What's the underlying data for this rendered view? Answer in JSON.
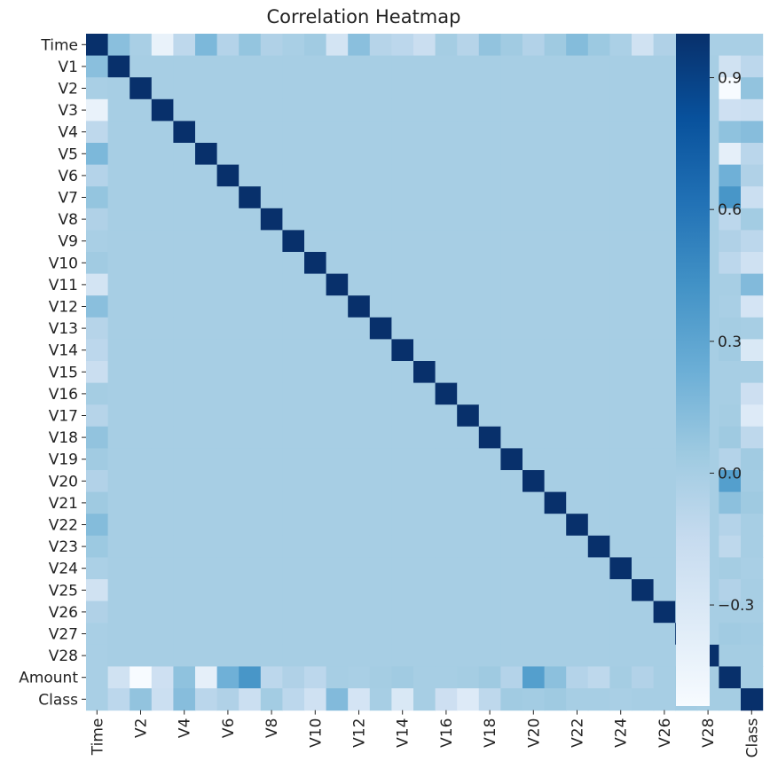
{
  "chart_data": {
    "type": "heatmap",
    "title": "Correlation Heatmap",
    "variables": [
      "Time",
      "V1",
      "V2",
      "V3",
      "V4",
      "V5",
      "V6",
      "V7",
      "V8",
      "V9",
      "V10",
      "V11",
      "V12",
      "V13",
      "V14",
      "V15",
      "V16",
      "V17",
      "V18",
      "V19",
      "V20",
      "V21",
      "V22",
      "V23",
      "V24",
      "V25",
      "V26",
      "V27",
      "V28",
      "Amount",
      "Class"
    ],
    "x_tick_labels": [
      "Time",
      "V2",
      "V4",
      "V6",
      "V8",
      "V10",
      "V12",
      "V14",
      "V16",
      "V18",
      "V20",
      "V22",
      "V24",
      "V26",
      "V28",
      "Class"
    ],
    "y_tick_labels": [
      "Time",
      "V1",
      "V2",
      "V3",
      "V4",
      "V5",
      "V6",
      "V7",
      "V8",
      "V9",
      "V10",
      "V11",
      "V12",
      "V13",
      "V14",
      "V15",
      "V16",
      "V17",
      "V18",
      "V19",
      "V20",
      "V21",
      "V22",
      "V23",
      "V24",
      "V25",
      "V26",
      "V27",
      "V28",
      "Amount",
      "Class"
    ],
    "time_correlations": [
      1.0,
      0.12,
      -0.01,
      -0.42,
      -0.11,
      0.17,
      -0.06,
      0.08,
      -0.04,
      -0.01,
      0.03,
      -0.25,
      0.12,
      -0.07,
      -0.1,
      -0.18,
      0.01,
      -0.07,
      0.09,
      0.03,
      -0.05,
      0.04,
      0.14,
      0.05,
      -0.02,
      -0.23,
      -0.04,
      -0.01,
      -0.01,
      -0.01,
      -0.01
    ],
    "amount_correlations": [
      -0.01,
      -0.23,
      -0.53,
      -0.21,
      0.1,
      -0.39,
      0.22,
      0.4,
      -0.1,
      -0.04,
      -0.1,
      0.0,
      -0.01,
      0.01,
      0.03,
      -0.0,
      -0.0,
      0.01,
      0.04,
      -0.06,
      0.34,
      0.11,
      -0.06,
      -0.11,
      0.01,
      -0.05,
      -0.0,
      0.03,
      0.01,
      1.0,
      0.01
    ],
    "class_correlations": [
      -0.01,
      -0.1,
      0.09,
      -0.19,
      0.13,
      -0.09,
      -0.04,
      -0.19,
      0.02,
      -0.1,
      -0.22,
      0.15,
      -0.26,
      -0.0,
      -0.3,
      -0.0,
      -0.2,
      -0.33,
      -0.11,
      0.03,
      0.02,
      0.04,
      0.0,
      -0.0,
      -0.01,
      0.0,
      0.0,
      0.02,
      0.01,
      0.01,
      1.0
    ],
    "colorbar": {
      "min": -0.53,
      "max": 1.0,
      "ticks": [
        0.9,
        0.6,
        0.3,
        0.0,
        -0.3
      ],
      "tick_labels": [
        "0.9",
        "0.6",
        "0.3",
        "0.0",
        "−0.3"
      ],
      "colormap": "Blues"
    },
    "grid": false
  }
}
